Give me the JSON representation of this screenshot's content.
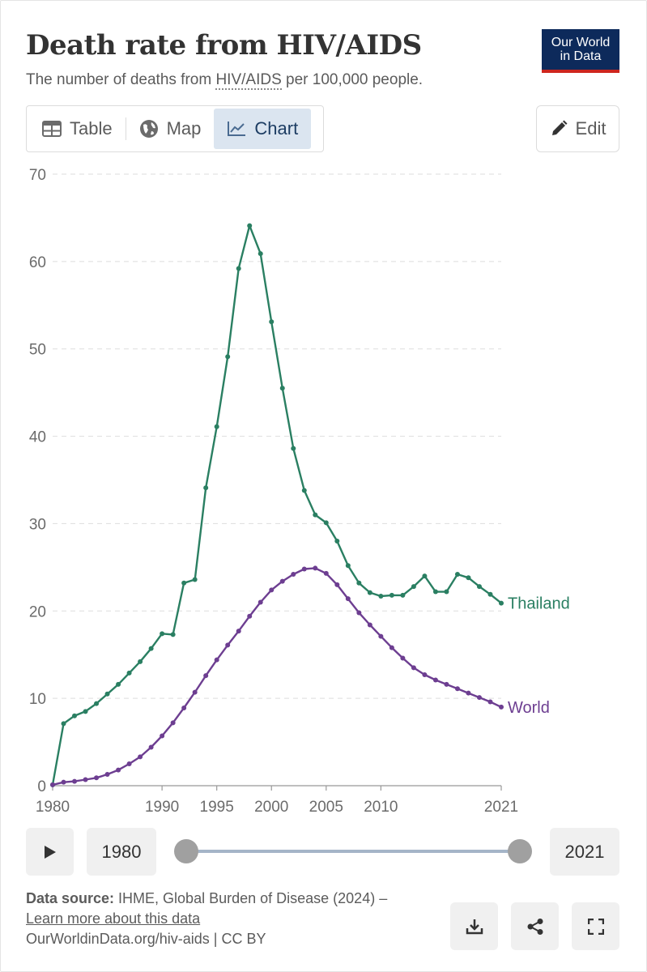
{
  "header": {
    "title": "Death rate from HIV/AIDS",
    "subtitle_pre": "The number of deaths from ",
    "subtitle_term": "HIV/AIDS",
    "subtitle_post": " per 100,000 people.",
    "logo_line1": "Our World",
    "logo_line2": "in Data"
  },
  "tabs": [
    {
      "label": "Table",
      "icon": "table-icon"
    },
    {
      "label": "Map",
      "icon": "globe-icon"
    },
    {
      "label": "Chart",
      "icon": "line-chart-icon",
      "active": true
    }
  ],
  "edit": {
    "label": "Edit",
    "icon": "pencil-icon"
  },
  "chart_data": {
    "type": "line",
    "title": "Death rate from HIV/AIDS",
    "ylabel": "",
    "xlabel": "",
    "ylim": [
      0,
      70
    ],
    "xlim": [
      1980,
      2021
    ],
    "yticks": [
      0,
      10,
      20,
      30,
      40,
      50,
      60,
      70
    ],
    "xticks": [
      1980,
      1990,
      1995,
      2000,
      2005,
      2010,
      2021
    ],
    "grid": true,
    "x": [
      1980,
      1981,
      1982,
      1983,
      1984,
      1985,
      1986,
      1987,
      1988,
      1989,
      1990,
      1991,
      1992,
      1993,
      1994,
      1995,
      1996,
      1997,
      1998,
      1999,
      2000,
      2001,
      2002,
      2003,
      2004,
      2005,
      2006,
      2007,
      2008,
      2009,
      2010,
      2011,
      2012,
      2013,
      2014,
      2015,
      2016,
      2017,
      2018,
      2019,
      2020,
      2021
    ],
    "series": [
      {
        "name": "Thailand",
        "color": "#2a7f62",
        "values": [
          0.1,
          7.1,
          8.0,
          8.5,
          9.4,
          10.5,
          11.6,
          12.9,
          14.2,
          15.7,
          17.4,
          17.3,
          23.2,
          23.6,
          34.1,
          41.1,
          49.1,
          59.2,
          64.1,
          60.9,
          53.1,
          45.5,
          38.6,
          33.8,
          31.0,
          30.1,
          28.0,
          25.2,
          23.2,
          22.1,
          21.7,
          21.8,
          21.8,
          22.8,
          24.0,
          22.2,
          22.2,
          24.2,
          23.8,
          22.8,
          21.9,
          20.9
        ]
      },
      {
        "name": "World",
        "color": "#6d3e91",
        "values": [
          0.1,
          0.4,
          0.5,
          0.7,
          0.9,
          1.3,
          1.8,
          2.5,
          3.3,
          4.4,
          5.7,
          7.2,
          8.9,
          10.7,
          12.6,
          14.4,
          16.1,
          17.7,
          19.4,
          21.0,
          22.4,
          23.4,
          24.2,
          24.8,
          24.9,
          24.3,
          23.0,
          21.4,
          19.8,
          18.4,
          17.1,
          15.8,
          14.6,
          13.5,
          12.7,
          12.1,
          11.6,
          11.1,
          10.6,
          10.1,
          9.6,
          9.0
        ]
      }
    ]
  },
  "timeline": {
    "start_year": "1980",
    "end_year": "2021"
  },
  "footer": {
    "source_label": "Data source:",
    "source_text": " IHME, Global Burden of Disease (2024) – ",
    "learn_more": "Learn more about this data",
    "url": "OurWorldinData.org/hiv-aids",
    "license": " | CC BY"
  },
  "footer_buttons": [
    "download-icon",
    "share-icon",
    "fullscreen-icon"
  ]
}
